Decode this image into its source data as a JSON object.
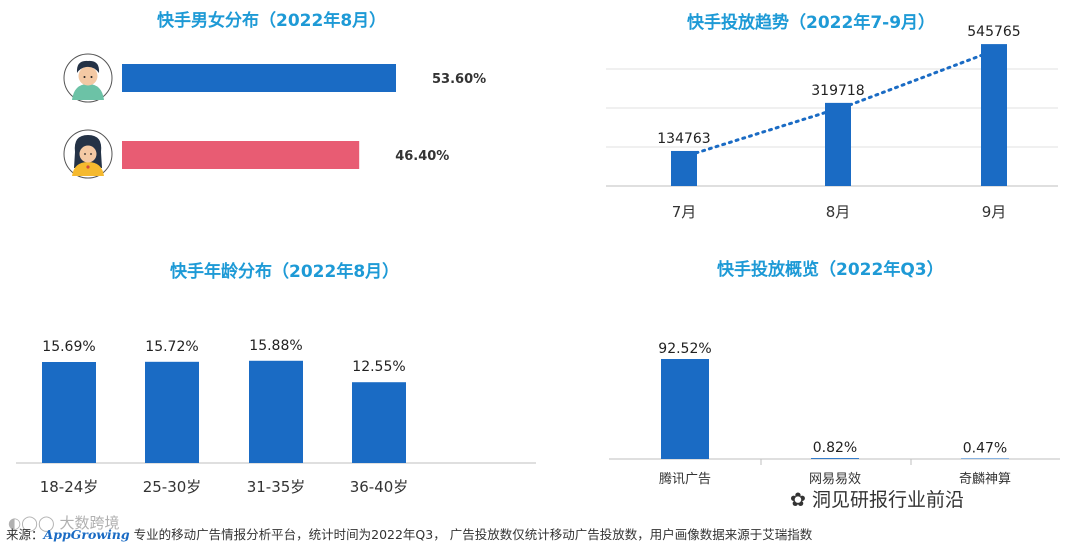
{
  "chart_data": [
    {
      "type": "bar",
      "orientation": "horizontal",
      "title": "快手男女分布（2022年8月）",
      "categories": [
        "男",
        "女"
      ],
      "values": [
        53.6,
        46.4
      ],
      "value_labels": [
        "53.60%",
        "46.40%"
      ],
      "colors": [
        "#1a6bc4",
        "#e85c73"
      ],
      "icons": [
        "male-avatar-icon",
        "female-avatar-icon"
      ]
    },
    {
      "type": "bar",
      "title": "快手投放趋势（2022年7-9月）",
      "categories": [
        "7月",
        "8月",
        "9月"
      ],
      "values": [
        134763,
        319718,
        545765
      ],
      "value_labels": [
        "134763",
        "319718",
        "545765"
      ],
      "trendline": "dotted",
      "ylim": [
        0,
        600000
      ],
      "grid": true,
      "colors": [
        "#1a6bc4"
      ]
    },
    {
      "type": "bar",
      "title": "快手年龄分布（2022年8月）",
      "categories": [
        "18-24岁",
        "25-30岁",
        "31-35岁",
        "36-40岁"
      ],
      "values": [
        15.69,
        15.72,
        15.88,
        12.55
      ],
      "value_labels": [
        "15.69%",
        "15.72%",
        "15.88%",
        "12.55%"
      ],
      "ylim": [
        0,
        20
      ],
      "colors": [
        "#1a6bc4"
      ]
    },
    {
      "type": "bar",
      "title": "快手投放概览（2022年Q3）",
      "categories": [
        "腾讯广告",
        "网易易效",
        "奇麟神算"
      ],
      "values": [
        92.52,
        0.82,
        0.47
      ],
      "value_labels": [
        "92.52%",
        "0.82%",
        "0.47%"
      ],
      "ylim": [
        0,
        110
      ],
      "colors": [
        "#1a6bc4"
      ]
    }
  ],
  "footer": {
    "prefix": "来源：",
    "brand": "AppGrowing",
    "text": " 专业的移动广告情报分析平台，统计时间为2022年Q3，  广告投放数仅统计移动广告投放数，用户画像数据来源于艾瑞指数"
  },
  "watermarks": {
    "left": "大数跨境",
    "right": "洞见研报行业前沿"
  }
}
